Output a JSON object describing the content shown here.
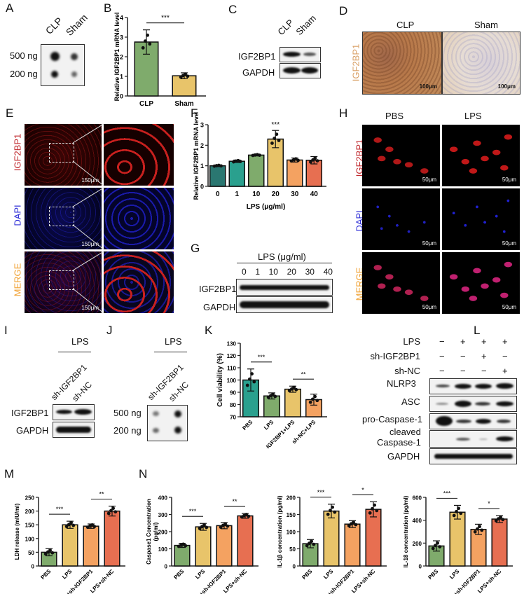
{
  "panels": {
    "A": {
      "letter": "A",
      "cols": [
        "CLP",
        "Sham"
      ],
      "rows": [
        "500 ng",
        "200 ng"
      ]
    },
    "B": {
      "letter": "B"
    },
    "C": {
      "letter": "C",
      "cols": [
        "CLP",
        "Sham"
      ],
      "rows": [
        "IGF2BP1",
        "GAPDH"
      ]
    },
    "D": {
      "letter": "D",
      "cols": [
        "CLP",
        "Sham"
      ],
      "row_label": "IGF2BP1",
      "scale": "100μm"
    },
    "E": {
      "letter": "E",
      "rows": [
        "IGF2BP1",
        "DAPI",
        "MERGE"
      ],
      "scale": "150μm"
    },
    "F": {
      "letter": "F"
    },
    "G": {
      "letter": "G",
      "header": "LPS (μg/ml)",
      "cols": [
        "0",
        "1",
        "10",
        "20",
        "30",
        "40"
      ],
      "rows": [
        "IGF2BP1",
        "GAPDH"
      ]
    },
    "H": {
      "letter": "H",
      "cols": [
        "PBS",
        "LPS"
      ],
      "rows": [
        "IGF2BP1",
        "DAPI",
        "MERGE"
      ],
      "scale": "50μm"
    },
    "I": {
      "letter": "I",
      "header": "LPS",
      "cols": [
        "sh-IGF2BP1",
        "sh-NC"
      ],
      "rows": [
        "IGF2BP1",
        "GAPDH"
      ]
    },
    "J": {
      "letter": "J",
      "header": "LPS",
      "cols": [
        "sh-IGF2BP1",
        "sh-NC"
      ],
      "rows": [
        "500 ng",
        "200 ng"
      ]
    },
    "K": {
      "letter": "K"
    },
    "L": {
      "letter": "L",
      "conditions": [
        {
          "name": "LPS",
          "signs": [
            "−",
            "+",
            "+",
            "+"
          ]
        },
        {
          "name": "sh-IGF2BP1",
          "signs": [
            "−",
            "−",
            "+",
            "−"
          ]
        },
        {
          "name": "sh-NC",
          "signs": [
            "−",
            "−",
            "−",
            "+"
          ]
        }
      ],
      "rows": [
        "NLRP3",
        "ASC",
        "pro-Caspase-1",
        "cleaved",
        "Caspase-1",
        "GAPDH"
      ]
    },
    "M": {
      "letter": "M"
    },
    "N": {
      "letter": "N"
    }
  },
  "colors": {
    "green": "#7fab6c",
    "yellow": "#e8c46a",
    "orange": "#f4a261",
    "red": "#e76f51",
    "teal_dark": "#2a7771",
    "teal": "#2aa08e",
    "ihc_label": "#d9a066",
    "red_label": "#c0282d",
    "blue_label": "#2a2ad6",
    "merge_label": "#f0a030"
  },
  "chart_data": [
    {
      "id": "B",
      "type": "bar",
      "categories": [
        "CLP",
        "Sham"
      ],
      "values": [
        2.75,
        1.03
      ],
      "errors": [
        0.62,
        0.15
      ],
      "ylabel": "Relative IGF2BP1 mRNA level",
      "ylim": [
        0,
        4
      ],
      "yticks": [
        "0",
        "1",
        "2",
        "3",
        "4"
      ],
      "colors": [
        "#7fab6c",
        "#e8c46a"
      ],
      "significance": [
        {
          "pair": [
            0,
            1
          ],
          "label": "***"
        }
      ]
    },
    {
      "id": "F",
      "type": "bar",
      "categories": [
        "0",
        "1",
        "10",
        "20",
        "30",
        "40"
      ],
      "values": [
        1.0,
        1.22,
        1.52,
        2.3,
        1.28,
        1.27
      ],
      "errors": [
        0.04,
        0.06,
        0.04,
        0.42,
        0.1,
        0.18
      ],
      "xlabel": "LPS (μg/ml)",
      "ylabel": "Relative IGF2BP1 mRNA level",
      "ylim": [
        0,
        3
      ],
      "yticks": [
        "0",
        "1",
        "2",
        "3"
      ],
      "colors": [
        "#2a7771",
        "#2aa08e",
        "#7fab6c",
        "#e8c46a",
        "#f4a261",
        "#e76f51"
      ],
      "significance": [
        {
          "index": 3,
          "label": "***"
        }
      ]
    },
    {
      "id": "K",
      "type": "bar",
      "categories": [
        "PBS",
        "LPS",
        "sh-IGF2BP1+LPS",
        "sh-NC+LPS"
      ],
      "values": [
        100,
        87,
        92.5,
        84
      ],
      "errors": [
        9,
        2.5,
        2.5,
        4.5
      ],
      "ylabel": "Cell viability (%)",
      "ylim": [
        70,
        130
      ],
      "yticks": [
        "70",
        "80",
        "90",
        "100",
        "110",
        "120",
        "130"
      ],
      "colors": [
        "#2aa08e",
        "#7fab6c",
        "#e8c46a",
        "#f4a261"
      ],
      "significance": [
        {
          "pair": [
            0,
            1
          ],
          "label": "***"
        },
        {
          "pair": [
            2,
            3
          ],
          "label": "**"
        }
      ]
    },
    {
      "id": "M",
      "type": "bar",
      "categories": [
        "PBS",
        "LPS",
        "LPS+sh-IGF2BP1",
        "LPS+sh-NC"
      ],
      "values": [
        50,
        150,
        145,
        200
      ],
      "errors": [
        13,
        13,
        8,
        18
      ],
      "ylabel": "LDH release (mIU/ml)",
      "ylim": [
        0,
        250
      ],
      "yticks": [
        "0",
        "50",
        "100",
        "150",
        "200",
        "250"
      ],
      "colors": [
        "#7fab6c",
        "#e8c46a",
        "#f4a261",
        "#e76f51"
      ],
      "significance": [
        {
          "pair": [
            0,
            1
          ],
          "label": "***"
        },
        {
          "pair": [
            2,
            3
          ],
          "label": "**"
        }
      ]
    },
    {
      "id": "N1",
      "type": "bar",
      "categories": [
        "PBS",
        "LPS",
        "LPS+sh-IGF2BP1",
        "LPS+sh-NC"
      ],
      "values": [
        120,
        228,
        235,
        292
      ],
      "errors": [
        12,
        20,
        18,
        14
      ],
      "ylabel": "Caspase1 Concentration (pg/ml)",
      "ylim": [
        0,
        400
      ],
      "yticks": [
        "0",
        "100",
        "200",
        "300",
        "400"
      ],
      "colors": [
        "#7fab6c",
        "#e8c46a",
        "#f4a261",
        "#e76f51"
      ],
      "significance": [
        {
          "pair": [
            0,
            1
          ],
          "label": "***"
        },
        {
          "pair": [
            2,
            3
          ],
          "label": "**"
        }
      ]
    },
    {
      "id": "N2",
      "type": "bar",
      "categories": [
        "PBS",
        "LPS",
        "LPS+sh-IGF2BP1",
        "LPS+sh-NC"
      ],
      "values": [
        65,
        160,
        122,
        165
      ],
      "errors": [
        12,
        20,
        10,
        22
      ],
      "ylabel": "IL-1β concentration (pg/ml)",
      "ylim": [
        0,
        200
      ],
      "yticks": [
        "0",
        "50",
        "100",
        "150",
        "200"
      ],
      "colors": [
        "#7fab6c",
        "#e8c46a",
        "#f4a261",
        "#e76f51"
      ],
      "significance": [
        {
          "pair": [
            0,
            1
          ],
          "label": "***"
        },
        {
          "pair": [
            2,
            3
          ],
          "label": "*"
        }
      ]
    },
    {
      "id": "N3",
      "type": "bar",
      "categories": [
        "PBS",
        "LPS",
        "LPS+sh-IGF2BP1",
        "LPS+sh-NC"
      ],
      "values": [
        175,
        470,
        320,
        410
      ],
      "errors": [
        45,
        60,
        45,
        30
      ],
      "ylabel": "IL-18 concentration (pg/ml)",
      "ylim": [
        0,
        600
      ],
      "yticks": [
        "0",
        "200",
        "400",
        "600"
      ],
      "colors": [
        "#7fab6c",
        "#e8c46a",
        "#f4a261",
        "#e76f51"
      ],
      "significance": [
        {
          "pair": [
            0,
            1
          ],
          "label": "***"
        },
        {
          "pair": [
            2,
            3
          ],
          "label": "*"
        }
      ]
    }
  ]
}
